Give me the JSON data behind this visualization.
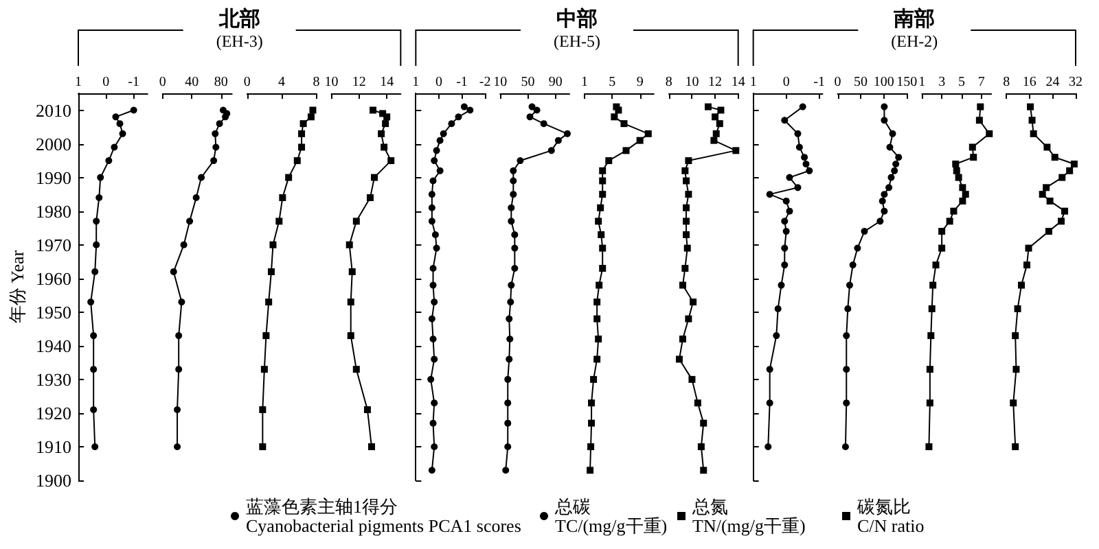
{
  "chart_data": [
    {
      "type": "other",
      "title": "北部",
      "subtitle": "(EH-3)"
    },
    {
      "type": "other",
      "title": "中部",
      "subtitle": "(EH-5)"
    },
    {
      "type": "other",
      "title": "南部",
      "subtitle": "(EH-2)"
    },
    {
      "type": "line",
      "ylabel": "年份 Year",
      "xlim": [
        1,
        -1.5
      ],
      "xticks": [
        1,
        0,
        -1
      ],
      "ylim": [
        1900,
        2015
      ],
      "yticks": [
        1900,
        1910,
        1920,
        1930,
        1940,
        1950,
        1960,
        1970,
        1980,
        1990,
        2000,
        2010
      ],
      "marker": "circle",
      "legend": "bottom",
      "series": [
        {
          "name": "蓝藻色素主轴1得分\nCyanobacterial pigments PCA1 scores",
          "color": "#000000",
          "x": [
            -1.0,
            -0.35,
            -0.5,
            -0.6,
            -0.3,
            -0.1,
            0.2,
            0.25,
            0.35,
            0.35,
            0.4,
            0.55,
            0.45,
            0.45,
            0.45,
            0.4
          ],
          "values": [
            2010,
            2008,
            2006,
            2003,
            1999,
            1995,
            1990,
            1984,
            1977,
            1970,
            1962,
            1953,
            1943,
            1933,
            1921,
            1910
          ]
        }
      ]
    },
    {
      "type": "line",
      "tick_labels": "x",
      "xlim": [
        0,
        95
      ],
      "xticks": [
        0,
        40,
        80
      ],
      "ylim": [
        1900,
        2015
      ],
      "yticks": [
        1900,
        1910,
        1920,
        1930,
        1940,
        1950,
        1960,
        1970,
        1980,
        1990,
        2000,
        2010
      ],
      "marker": "circle",
      "legend": "bottom",
      "series": [
        {
          "name": "总碳\nTC/(mg/g干重)",
          "color": "#000000",
          "x": [
            83,
            88,
            86,
            78,
            72,
            73,
            70,
            53,
            46,
            37,
            29,
            15,
            26,
            22,
            22,
            20,
            20
          ],
          "values": [
            2010,
            2009,
            2008,
            2006,
            2003,
            1999,
            1995,
            1990,
            1984,
            1977,
            1970,
            1962,
            1953,
            1943,
            1933,
            1921,
            1910
          ]
        }
      ]
    },
    {
      "type": "line",
      "tick_labels": "x",
      "xlim": [
        0,
        8
      ],
      "xticks": [
        0,
        4,
        8
      ],
      "ylim": [
        1900,
        2015
      ],
      "yticks": [
        1900,
        1910,
        1920,
        1930,
        1940,
        1950,
        1960,
        1970,
        1980,
        1990,
        2000,
        2010
      ],
      "marker": "square",
      "legend": "bottom",
      "series": [
        {
          "name": "总氮\nTN/(mg/g干重)",
          "color": "#000000",
          "x": [
            7.6,
            7.4,
            6.5,
            6.3,
            6.3,
            5.8,
            4.8,
            4.1,
            3.7,
            3.0,
            2.8,
            2.5,
            2.2,
            2.0,
            1.8,
            1.8
          ],
          "values": [
            2010,
            2008,
            2006,
            2003,
            1999,
            1995,
            1990,
            1984,
            1977,
            1970,
            1962,
            1953,
            1943,
            1933,
            1921,
            1910
          ]
        }
      ]
    },
    {
      "type": "line",
      "tick_labels": "x",
      "xlim": [
        10,
        15
      ],
      "xticks": [
        10,
        12,
        14
      ],
      "ylim": [
        1900,
        2015
      ],
      "yticks": [
        1900,
        1910,
        1920,
        1930,
        1940,
        1950,
        1960,
        1970,
        1980,
        1990,
        2000,
        2010
      ],
      "marker": "square",
      "legend": "bottom",
      "series": [
        {
          "name": "碳氮比\nC/N ratio",
          "color": "#000000",
          "x": [
            13.0,
            13.7,
            14.0,
            13.9,
            13.6,
            13.8,
            14.3,
            13.1,
            12.8,
            11.8,
            11.3,
            11.5,
            11.4,
            11.4,
            11.8,
            12.6,
            12.9
          ],
          "values": [
            2010,
            2009,
            2008,
            2006,
            2003,
            1999,
            1995,
            1990,
            1984,
            1977,
            1970,
            1962,
            1953,
            1943,
            1933,
            1921,
            1910
          ]
        }
      ]
    },
    {
      "type": "line",
      "tick_labels": "x",
      "xlim": [
        1,
        -2
      ],
      "xticks": [
        1,
        0,
        -1,
        -2
      ],
      "ylim": [
        1900,
        2015
      ],
      "yticks": [
        1900,
        1910,
        1920,
        1930,
        1940,
        1950,
        1960,
        1970,
        1980,
        1990,
        2000,
        2010
      ],
      "marker": "circle",
      "series": [
        {
          "color": "#000000",
          "x": [
            -1.1,
            -1.35,
            -0.85,
            -0.55,
            -0.2,
            -0.05,
            0.1,
            0.2,
            -0.05,
            0.25,
            0.3,
            0.3,
            0.3,
            0.15,
            0.1,
            0.25,
            0.25,
            0.2,
            0.3,
            0.25,
            0.2,
            0.35,
            0.2,
            0.25,
            0.2,
            0.3
          ],
          "values": [
            2011,
            2010,
            2008,
            2006,
            2003,
            2001,
            1998,
            1995,
            1992,
            1989,
            1985,
            1981,
            1977,
            1973,
            1969,
            1963,
            1958,
            1953,
            1948,
            1942,
            1936,
            1930,
            1923,
            1917,
            1910,
            1903
          ]
        }
      ]
    },
    {
      "type": "line",
      "tick_labels": "x",
      "xlim": [
        10,
        110
      ],
      "xticks": [
        10,
        50,
        90
      ],
      "ylim": [
        1900,
        2015
      ],
      "yticks": [
        1900,
        1910,
        1920,
        1930,
        1940,
        1950,
        1960,
        1970,
        1980,
        1990,
        2000,
        2010
      ],
      "marker": "circle",
      "series": [
        {
          "color": "#000000",
          "x": [
            56,
            63,
            53,
            73,
            107,
            94,
            84,
            39,
            29,
            29,
            29,
            26,
            26,
            31,
            31,
            31,
            26,
            25,
            23,
            24,
            23,
            21,
            21,
            21,
            21,
            18
          ],
          "values": [
            2011,
            2010,
            2008,
            2006,
            2003,
            2001,
            1998,
            1995,
            1992,
            1989,
            1985,
            1981,
            1977,
            1973,
            1969,
            1963,
            1958,
            1953,
            1948,
            1942,
            1936,
            1930,
            1923,
            1917,
            1910,
            1903
          ]
        }
      ]
    },
    {
      "type": "line",
      "tick_labels": "x",
      "xlim": [
        1,
        11
      ],
      "xticks": [
        1,
        5,
        9
      ],
      "ylim": [
        1900,
        2015
      ],
      "yticks": [
        1900,
        1910,
        1920,
        1930,
        1940,
        1950,
        1960,
        1970,
        1980,
        1990,
        2000,
        2010
      ],
      "marker": "square",
      "series": [
        {
          "color": "#000000",
          "x": [
            5.6,
            5.9,
            5.3,
            6.7,
            10.2,
            9.0,
            7.0,
            4.5,
            3.6,
            3.6,
            3.6,
            3.3,
            3.0,
            3.4,
            3.6,
            3.6,
            3.1,
            2.8,
            2.8,
            3.0,
            2.8,
            2.3,
            2.0,
            2.0,
            1.9,
            1.8
          ],
          "values": [
            2011,
            2010,
            2008,
            2006,
            2003,
            2001,
            1998,
            1995,
            1992,
            1989,
            1985,
            1981,
            1977,
            1973,
            1969,
            1963,
            1958,
            1953,
            1948,
            1942,
            1936,
            1930,
            1923,
            1917,
            1910,
            1903
          ]
        }
      ]
    },
    {
      "type": "line",
      "tick_labels": "x",
      "xlim": [
        8,
        14
      ],
      "xticks": [
        8,
        10,
        12,
        14
      ],
      "ylim": [
        1900,
        2015
      ],
      "yticks": [
        1900,
        1910,
        1920,
        1930,
        1940,
        1950,
        1960,
        1970,
        1980,
        1990,
        2000,
        2010
      ],
      "marker": "square",
      "series": [
        {
          "color": "#000000",
          "x": [
            11.4,
            12.5,
            12.0,
            12.4,
            12.1,
            11.9,
            13.8,
            9.7,
            9.4,
            9.5,
            9.7,
            9.5,
            9.5,
            9.5,
            9.6,
            9.4,
            9.2,
            10.1,
            9.7,
            9.2,
            8.9,
            10.0,
            10.5,
            11.0,
            10.8,
            11.0
          ],
          "values": [
            2011,
            2010,
            2008,
            2006,
            2003,
            2001,
            1998,
            1995,
            1992,
            1989,
            1985,
            1981,
            1977,
            1973,
            1969,
            1963,
            1958,
            1953,
            1948,
            1942,
            1936,
            1930,
            1923,
            1917,
            1910,
            1903
          ]
        }
      ]
    },
    {
      "type": "line",
      "tick_labels": "x",
      "xlim": [
        1,
        -1.1
      ],
      "xticks": [
        1,
        0,
        -1
      ],
      "ylim": [
        1900,
        2015
      ],
      "yticks": [
        1900,
        1910,
        1920,
        1930,
        1940,
        1950,
        1960,
        1970,
        1980,
        1990,
        2000,
        2010
      ],
      "marker": "circle",
      "series": [
        {
          "color": "#000000",
          "x": [
            -0.5,
            0.05,
            -0.35,
            -0.4,
            -0.55,
            -0.6,
            -0.7,
            -0.1,
            -0.35,
            0.5,
            0.0,
            -0.1,
            0.05,
            0.0,
            0.05,
            0.05,
            0.15,
            0.25,
            0.3,
            0.5,
            0.5,
            0.55
          ],
          "values": [
            2011,
            2007,
            2003,
            1999,
            1996,
            1994,
            1992,
            1990,
            1987,
            1985,
            1983,
            1980,
            1977,
            1974,
            1969,
            1964,
            1958,
            1951,
            1943,
            1933,
            1923,
            1910
          ]
        }
      ]
    },
    {
      "type": "line",
      "tick_labels": "x",
      "xlim": [
        0,
        150
      ],
      "xticks": [
        0,
        50,
        100,
        150
      ],
      "ylim": [
        1900,
        2015
      ],
      "yticks": [
        1900,
        1910,
        1920,
        1930,
        1940,
        1950,
        1960,
        1970,
        1980,
        1990,
        2000,
        2010
      ],
      "marker": "circle",
      "series": [
        {
          "color": "#000000",
          "x": [
            101,
            101,
            119,
            113,
            132,
            126,
            123,
            116,
            111,
            101,
            97,
            101,
            92,
            58,
            43,
            33,
            26,
            22,
            19,
            19,
            19,
            17
          ],
          "values": [
            2011,
            2007,
            2003,
            1999,
            1996,
            1994,
            1992,
            1990,
            1987,
            1985,
            1983,
            1980,
            1977,
            1974,
            1969,
            1964,
            1958,
            1951,
            1943,
            1933,
            1923,
            1910
          ]
        }
      ]
    },
    {
      "type": "line",
      "tick_labels": "x",
      "xlim": [
        1,
        8
      ],
      "xticks": [
        1,
        3,
        5,
        7
      ],
      "ylim": [
        1900,
        2015
      ],
      "yticks": [
        1900,
        1910,
        1920,
        1930,
        1940,
        1950,
        1960,
        1970,
        1980,
        1990,
        2000,
        2010
      ],
      "marker": "square",
      "series": [
        {
          "color": "#000000",
          "x": [
            6.9,
            6.8,
            7.8,
            6.1,
            6.2,
            4.4,
            4.5,
            4.7,
            5.1,
            5.4,
            5.1,
            4.2,
            3.8,
            3.0,
            3.0,
            2.4,
            2.1,
            2.0,
            1.9,
            1.8,
            1.8,
            1.7
          ],
          "values": [
            2011,
            2007,
            2003,
            1999,
            1996,
            1994,
            1992,
            1990,
            1987,
            1985,
            1983,
            1980,
            1977,
            1974,
            1969,
            1964,
            1958,
            1951,
            1943,
            1933,
            1923,
            1910
          ]
        }
      ]
    },
    {
      "type": "line",
      "tick_labels": "x",
      "xlim": [
        8,
        32
      ],
      "xticks": [
        8,
        16,
        24,
        32
      ],
      "ylim": [
        1900,
        2015
      ],
      "yticks": [
        1900,
        1910,
        1920,
        1930,
        1940,
        1950,
        1960,
        1970,
        1980,
        1990,
        2000,
        2010
      ],
      "marker": "square",
      "series": [
        {
          "color": "#000000",
          "x": [
            16.3,
            16.9,
            17.4,
            22.1,
            24.8,
            31.5,
            29.9,
            27.3,
            21.8,
            20.5,
            23.1,
            28.2,
            27.0,
            22.7,
            15.7,
            15.1,
            13.2,
            11.9,
            11.1,
            11.4,
            10.4,
            11.1
          ],
          "values": [
            2011,
            2007,
            2003,
            1999,
            1996,
            1994,
            1992,
            1990,
            1987,
            1985,
            1983,
            1980,
            1977,
            1974,
            1969,
            1964,
            1958,
            1951,
            1943,
            1933,
            1923,
            1910
          ]
        }
      ]
    }
  ]
}
